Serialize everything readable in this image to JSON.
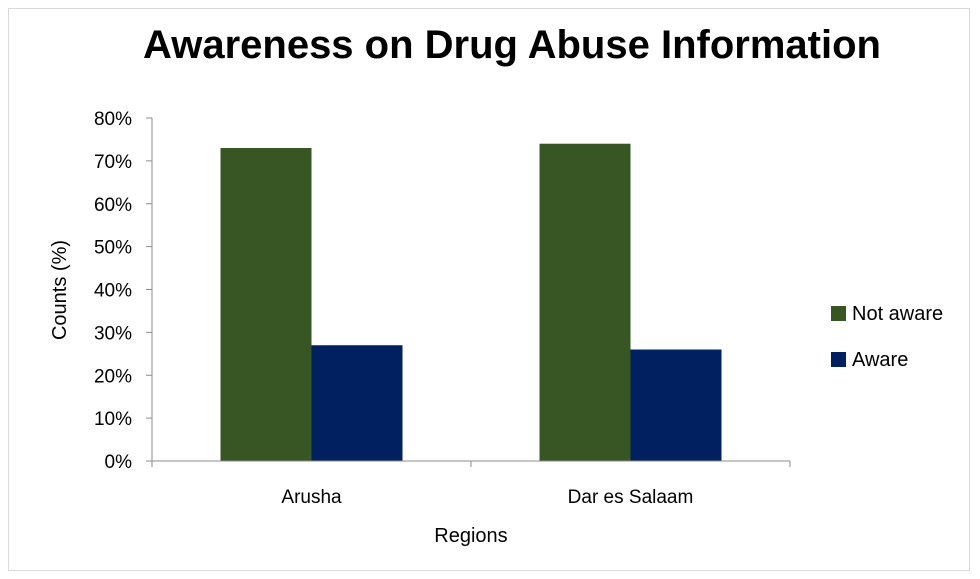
{
  "chart_data": {
    "type": "bar",
    "title": "Awareness on Drug Abuse Information",
    "xlabel": "Regions",
    "ylabel": "Counts (%)",
    "categories": [
      "Arusha",
      "Dar es Salaam"
    ],
    "series": [
      {
        "name": "Not aware",
        "values": [
          73,
          74
        ],
        "color": "#375623"
      },
      {
        "name": "Aware",
        "values": [
          27,
          26
        ],
        "color": "#002060"
      }
    ],
    "ylim": [
      0,
      80
    ],
    "yticks": [
      "0%",
      "10%",
      "20%",
      "30%",
      "40%",
      "50%",
      "60%",
      "70%",
      "80%"
    ],
    "grid": false,
    "legend_position": "right"
  }
}
